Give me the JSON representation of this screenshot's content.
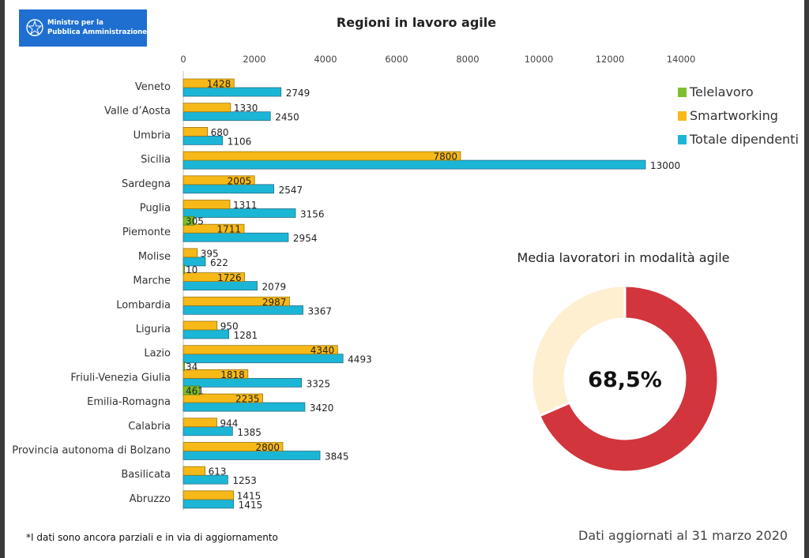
{
  "header": {
    "logo_line1": "Ministro per la",
    "logo_line2": "Pubblica Amministrazione"
  },
  "chart_data": [
    {
      "type": "bar",
      "orientation": "horizontal",
      "title": "Regioni in lavoro agile",
      "xlim": [
        0,
        14000
      ],
      "x_ticks": [
        0,
        2000,
        4000,
        6000,
        8000,
        10000,
        12000,
        14000
      ],
      "grid": false,
      "legend_position": "top-right",
      "categories": [
        "Veneto",
        "Valle d’Aosta",
        "Umbria",
        "Sicilia",
        "Sardegna",
        "Puglia",
        "Piemonte",
        "Molise",
        "Marche",
        "Lombardia",
        "Liguria",
        "Lazio",
        "Friuli-Venezia Giulia",
        "Emilia-Romagna",
        "Calabria",
        "Provincia autonoma di Bolzano",
        "Basilicata",
        "Abruzzo"
      ],
      "series": [
        {
          "name": "Telelavoro",
          "color": "#7dbf2c",
          "values": [
            null,
            null,
            null,
            null,
            null,
            null,
            305,
            null,
            10,
            null,
            null,
            null,
            34,
            461,
            null,
            null,
            null,
            null
          ]
        },
        {
          "name": "Smartworking",
          "color": "#f7b918",
          "values": [
            1428,
            1330,
            680,
            7800,
            2005,
            1311,
            1711,
            395,
            1726,
            2987,
            950,
            4340,
            1818,
            2235,
            944,
            2800,
            613,
            1415
          ]
        },
        {
          "name": "Totale dipendenti",
          "color": "#1bb6d6",
          "values": [
            2749,
            2450,
            1106,
            13000,
            2547,
            3156,
            2954,
            622,
            2079,
            3367,
            1281,
            4493,
            3325,
            3420,
            1385,
            3845,
            1253,
            1415
          ]
        }
      ]
    },
    {
      "type": "pie",
      "title": "Media lavoratori in modalità agile",
      "center_label": "68,5%",
      "values": [
        68.5,
        31.5
      ],
      "colors": [
        "#d2353c",
        "#fdefd0"
      ]
    }
  ],
  "footer": {
    "note": "*I dati sono ancora parziali e in via di aggiornamento",
    "updated": "Dati aggiornati al 31 marzo 2020"
  }
}
